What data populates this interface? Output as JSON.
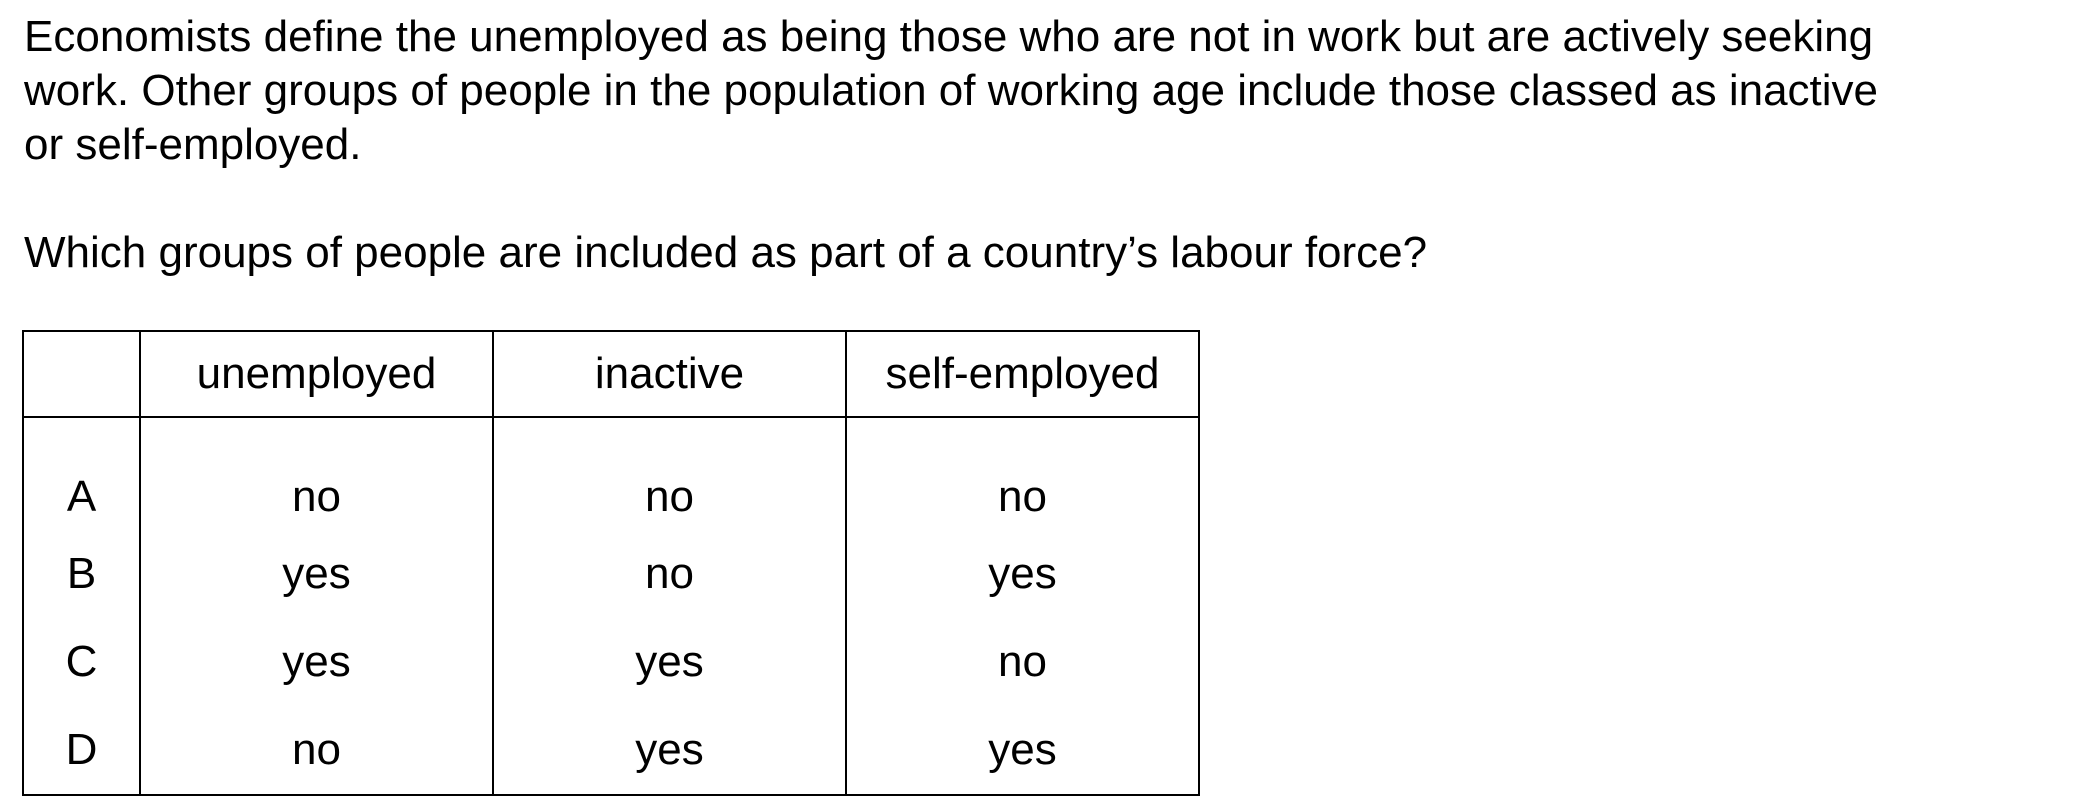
{
  "question": {
    "intro_lines": [
      "Economists define the unemployed as being those who are not in work but are actively seeking",
      "work. Other groups of people in the population of working age include those classed as inactive",
      "or self-employed."
    ],
    "prompt": "Which groups of people are included as part of a country’s labour force?"
  },
  "table": {
    "headers": [
      "",
      "unemployed",
      "inactive",
      "self-employed"
    ],
    "rows": [
      {
        "letter": "A",
        "unemployed": "no",
        "inactive": "no",
        "self_employed": "no"
      },
      {
        "letter": "B",
        "unemployed": "yes",
        "inactive": "no",
        "self_employed": "yes"
      },
      {
        "letter": "C",
        "unemployed": "yes",
        "inactive": "yes",
        "self_employed": "no"
      },
      {
        "letter": "D",
        "unemployed": "no",
        "inactive": "yes",
        "self_employed": "yes"
      }
    ]
  }
}
